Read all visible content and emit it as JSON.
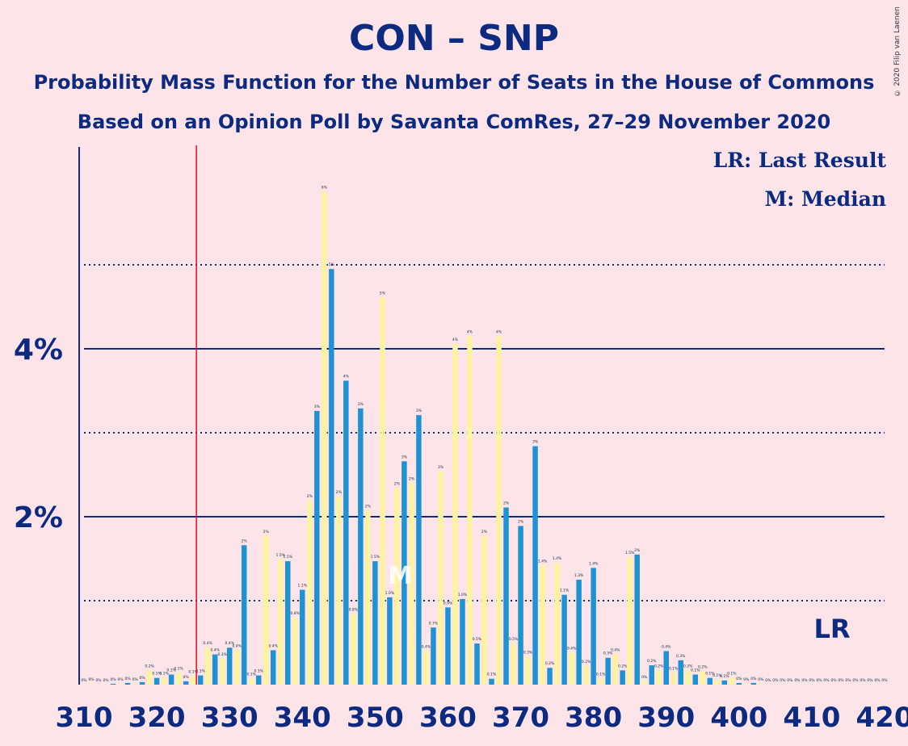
{
  "title": "CON – SNP",
  "subtitle1": "Probability Mass Function for the Number of Seats in the House of Commons",
  "subtitle2": "Based on an Opinion Poll by Savanta ComRes, 27–29 November 2020",
  "legend": {
    "lr": "LR: Last Result",
    "m": "M: Median",
    "lr_marker": "LR",
    "m_marker": "M"
  },
  "copyright": "© 2020 Filip van Laenen",
  "colors": {
    "background": "#fde4e8",
    "bar_even": "#1f92d6",
    "bar_odd": "#fff3a0",
    "axis": "#0c2a80",
    "last_result_line": "#e0102a"
  },
  "chart_data": {
    "type": "bar",
    "xlabel": "",
    "ylabel": "",
    "x_ticks": [
      310,
      320,
      330,
      340,
      350,
      360,
      370,
      380,
      390,
      400,
      410,
      420
    ],
    "y_ticks": [
      "2%",
      "4%"
    ],
    "ylim": [
      0,
      6.4
    ],
    "last_result": 326,
    "median": 354,
    "x": [
      310,
      311,
      312,
      313,
      314,
      315,
      316,
      317,
      318,
      319,
      320,
      321,
      322,
      323,
      324,
      325,
      326,
      327,
      328,
      329,
      330,
      331,
      332,
      333,
      334,
      335,
      336,
      337,
      338,
      339,
      340,
      341,
      342,
      343,
      344,
      345,
      346,
      347,
      348,
      349,
      350,
      351,
      352,
      353,
      354,
      355,
      356,
      357,
      358,
      359,
      360,
      361,
      362,
      363,
      364,
      365,
      366,
      367,
      368,
      369,
      370,
      371,
      372,
      373,
      374,
      375,
      376,
      377,
      378,
      379,
      380,
      381,
      382,
      383,
      384,
      385,
      386,
      387,
      388,
      389,
      390,
      391,
      392,
      393,
      394,
      395,
      396,
      397,
      398,
      399,
      400,
      401,
      402,
      403,
      404,
      405,
      406,
      407,
      408,
      409,
      410,
      411,
      412,
      413,
      414,
      415,
      416,
      417,
      418,
      419,
      420
    ],
    "values": [
      0,
      0.01,
      0,
      0,
      0.01,
      0.01,
      0.02,
      0.01,
      0.03,
      0.17,
      0.08,
      0.08,
      0.12,
      0.14,
      0.04,
      0.1,
      0.11,
      0.44,
      0.36,
      0.31,
      0.44,
      0.41,
      1.66,
      0.07,
      0.11,
      1.77,
      0.41,
      1.49,
      1.47,
      0.8,
      1.13,
      2.19,
      3.26,
      5.87,
      4.95,
      2.24,
      3.62,
      0.84,
      3.29,
      2.07,
      1.47,
      4.61,
      1.04,
      2.34,
      2.66,
      2.4,
      3.21,
      0.4,
      0.68,
      2.54,
      0.92,
      4.06,
      1.02,
      4.15,
      0.49,
      1.77,
      0.07,
      4.15,
      2.11,
      0.49,
      1.89,
      0.33,
      2.84,
      1.42,
      0.2,
      1.45,
      1.07,
      0.38,
      1.25,
      0.22,
      1.39,
      0.07,
      0.32,
      0.36,
      0.17,
      1.52,
      1.55,
      0.04,
      0.23,
      0.17,
      0.4,
      0.14,
      0.29,
      0.17,
      0.12,
      0.16,
      0.08,
      0.06,
      0.05,
      0.08,
      0.02,
      0.01,
      0.02,
      0.01,
      0,
      0,
      0,
      0,
      0,
      0,
      0,
      0,
      0,
      0,
      0,
      0,
      0,
      0,
      0,
      0,
      0
    ],
    "labels": [
      "0%",
      "0%",
      "0%",
      "0%",
      "0%",
      "0%",
      "0%",
      "0%",
      "0%",
      "0.2%",
      "0.1%",
      "0.1%",
      "0.1%",
      "0.1%",
      "0%",
      "0.1%",
      "0.1%",
      "0.4%",
      "0.4%",
      "0.3%",
      "0.4%",
      "0.4%",
      "2%",
      "0.1%",
      "0.1%",
      "2%",
      "0.4%",
      "1.5%",
      "1.5%",
      "0.8%",
      "1.1%",
      "2%",
      "3%",
      "6%",
      "5%",
      "2%",
      "4%",
      "0.8%",
      "3%",
      "2%",
      "1.5%",
      "5%",
      "1.0%",
      "2%",
      "3%",
      "2%",
      "3%",
      "0.4%",
      "0.7%",
      "3%",
      "0.9%",
      "4%",
      "1.0%",
      "4%",
      "0.5%",
      "2%",
      "0.1%",
      "4%",
      "2%",
      "0.5%",
      "2%",
      "0.3%",
      "3%",
      "1.4%",
      "0.2%",
      "1.4%",
      "1.1%",
      "0.4%",
      "1.3%",
      "0.2%",
      "1.4%",
      "0.1%",
      "0.3%",
      "0.4%",
      "0.2%",
      "1.5%",
      "2%",
      "0%",
      "0.2%",
      "0.2%",
      "0.4%",
      "0.1%",
      "0.3%",
      "0.2%",
      "0.1%",
      "0.2%",
      "0.1%",
      "0.1%",
      "0.1%",
      "0.1%",
      "0%",
      "0%",
      "0%",
      "0%",
      "0%",
      "0%",
      "0%",
      "0%",
      "0%",
      "0%",
      "0%",
      "0%",
      "0%",
      "0%",
      "0%",
      "0%",
      "0%",
      "0%",
      "0%",
      "0%",
      "0%"
    ]
  }
}
